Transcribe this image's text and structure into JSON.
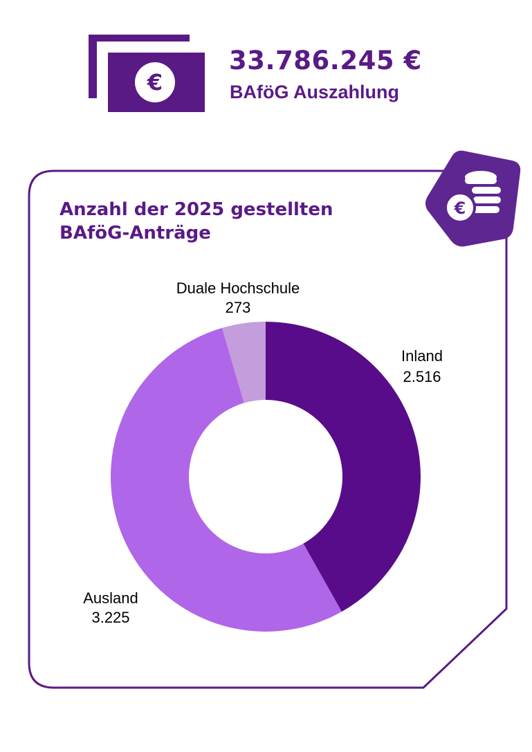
{
  "header": {
    "amount": "33.786.245 €",
    "amount_label": "BAföG Auszahlung",
    "banknote_symbol": "€",
    "icon": "banknote-euro-icon"
  },
  "badge": {
    "icon": "coins-euro-icon",
    "symbol": "€"
  },
  "colors": {
    "primary": "#5a1a86",
    "inland": "#580c89",
    "ausland": "#b066e8",
    "duale": "#c39ddc",
    "badge": "#5e2691"
  },
  "chart_data": {
    "type": "pie",
    "title_lines": [
      "Anzahl der 2025 gestellten",
      "BAföG-Anträge"
    ],
    "donut": true,
    "slices": [
      {
        "name": "Inland",
        "value": 2516,
        "value_label": "2.516",
        "color": "#580c89"
      },
      {
        "name": "Ausland",
        "value": 3225,
        "value_label": "3.225",
        "color": "#b066e8"
      },
      {
        "name": "Duale Hochschule",
        "value": 273,
        "value_label": "273",
        "color": "#c39ddc"
      }
    ]
  }
}
